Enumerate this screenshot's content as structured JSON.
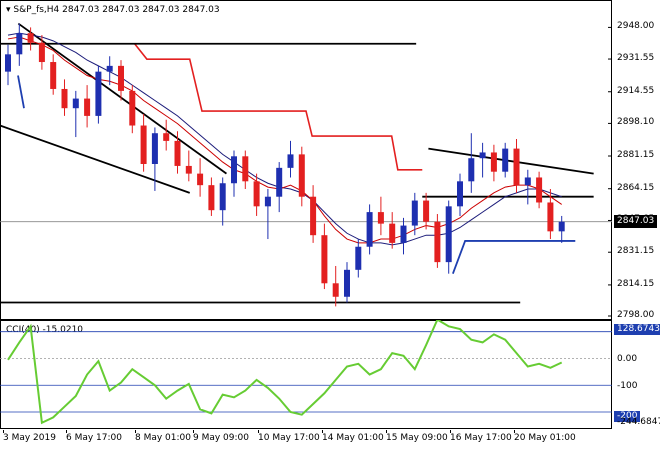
{
  "header": {
    "symbol_label": "S&P_fs,H4",
    "ohlc_values": "2847.03 2847.03 2847.03 2847.03"
  },
  "price_axis": {
    "ticks": [
      "2948.00",
      "2931.55",
      "2914.55",
      "2898.10",
      "2881.15",
      "2864.15",
      "2847.65",
      "2831.15",
      "2814.15",
      "2798.00"
    ],
    "current_price": "2847.03"
  },
  "cci_panel": {
    "title": "CCI(40) -15.0210",
    "ticks": [
      "128.6743",
      "0.00",
      "-100",
      "-200",
      "-244.6847"
    ],
    "level_plus": "100",
    "level_minus_200": "-200"
  },
  "time_axis": {
    "labels": [
      "3 May 2019",
      "6 May 17:00",
      "8 May 01:00",
      "9 May 09:00",
      "10 May 17:00",
      "14 May 01:00",
      "15 May 09:00",
      "16 May 17:00",
      "20 May 01:00"
    ]
  },
  "colors": {
    "bull": "#1e2fb0",
    "bear": "#e32020",
    "ma_fast": "#cc0000",
    "ma_slow": "#1c1c7a",
    "trend": "#000000",
    "cci_line": "#66cc33",
    "level_line": "#1e3fb0"
  },
  "chart_data": {
    "type": "candlestick",
    "series_name": "S&P_fs,H4",
    "ohlc": [
      [
        2925,
        2939,
        2918,
        2934
      ],
      [
        2934,
        2950,
        2928,
        2945
      ],
      [
        2945,
        2948,
        2936,
        2940
      ],
      [
        2940,
        2944,
        2926,
        2930
      ],
      [
        2930,
        2934,
        2913,
        2916
      ],
      [
        2916,
        2921,
        2902,
        2906
      ],
      [
        2906,
        2915,
        2891,
        2911
      ],
      [
        2911,
        2918,
        2896,
        2902
      ],
      [
        2902,
        2928,
        2898,
        2925
      ],
      [
        2925,
        2933,
        2918,
        2928
      ],
      [
        2928,
        2931,
        2910,
        2915
      ],
      [
        2915,
        2918,
        2893,
        2897
      ],
      [
        2897,
        2903,
        2873,
        2877
      ],
      [
        2877,
        2896,
        2863,
        2893
      ],
      [
        2893,
        2900,
        2884,
        2889
      ],
      [
        2889,
        2894,
        2872,
        2876
      ],
      [
        2876,
        2884,
        2868,
        2872
      ],
      [
        2872,
        2880,
        2860,
        2866
      ],
      [
        2866,
        2870,
        2850,
        2853
      ],
      [
        2853,
        2870,
        2845,
        2867
      ],
      [
        2867,
        2884,
        2860,
        2881
      ],
      [
        2881,
        2884,
        2864,
        2868
      ],
      [
        2868,
        2872,
        2850,
        2855
      ],
      [
        2855,
        2864,
        2838,
        2860
      ],
      [
        2860,
        2878,
        2852,
        2875
      ],
      [
        2875,
        2889,
        2870,
        2882
      ],
      [
        2882,
        2886,
        2855,
        2860
      ],
      [
        2860,
        2866,
        2836,
        2840
      ],
      [
        2840,
        2846,
        2812,
        2815
      ],
      [
        2815,
        2824,
        2803,
        2808
      ],
      [
        2808,
        2826,
        2805,
        2822
      ],
      [
        2822,
        2838,
        2818,
        2834
      ],
      [
        2834,
        2856,
        2830,
        2852
      ],
      [
        2852,
        2860,
        2840,
        2846
      ],
      [
        2846,
        2852,
        2833,
        2836
      ],
      [
        2836,
        2849,
        2830,
        2845
      ],
      [
        2845,
        2862,
        2840,
        2858
      ],
      [
        2858,
        2862,
        2843,
        2847
      ],
      [
        2847,
        2851,
        2823,
        2826
      ],
      [
        2826,
        2858,
        2820,
        2855
      ],
      [
        2855,
        2872,
        2850,
        2868
      ],
      [
        2868,
        2893,
        2862,
        2880
      ],
      [
        2880,
        2888,
        2870,
        2883
      ],
      [
        2883,
        2887,
        2868,
        2873
      ],
      [
        2873,
        2888,
        2870,
        2885
      ],
      [
        2885,
        2890,
        2862,
        2866
      ],
      [
        2866,
        2874,
        2856,
        2870
      ],
      [
        2870,
        2873,
        2854,
        2857
      ],
      [
        2857,
        2864,
        2838,
        2842
      ],
      [
        2842,
        2850,
        2836,
        2847
      ]
    ],
    "ma_fast": [
      2942,
      2943,
      2941,
      2939,
      2936,
      2931,
      2927,
      2923,
      2921,
      2920,
      2918,
      2915,
      2910,
      2906,
      2902,
      2898,
      2893,
      2888,
      2883,
      2878,
      2874,
      2872,
      2868,
      2865,
      2864,
      2866,
      2863,
      2858,
      2850,
      2843,
      2838,
      2836,
      2836,
      2838,
      2838,
      2840,
      2843,
      2845,
      2844,
      2846,
      2849,
      2854,
      2858,
      2862,
      2865,
      2866,
      2866,
      2864,
      2860,
      2856
    ],
    "ma_slow": [
      2944,
      2945,
      2944,
      2943,
      2941,
      2938,
      2935,
      2931,
      2928,
      2925,
      2922,
      2918,
      2914,
      2910,
      2906,
      2902,
      2897,
      2892,
      2887,
      2882,
      2878,
      2874,
      2870,
      2867,
      2865,
      2864,
      2862,
      2858,
      2852,
      2846,
      2841,
      2838,
      2836,
      2836,
      2835,
      2836,
      2838,
      2840,
      2840,
      2841,
      2844,
      2848,
      2852,
      2856,
      2860,
      2862,
      2864,
      2864,
      2862,
      2860
    ],
    "envelope": [
      {
        "x": 0.0,
        "y": 2939.5
      },
      {
        "x": 0.22,
        "y": 2939.5
      },
      {
        "x": 0.24,
        "y": 2931.5
      },
      {
        "x": 0.31,
        "y": 2931.5
      },
      {
        "x": 0.33,
        "y": 2904.5
      },
      {
        "x": 0.5,
        "y": 2904.5
      },
      {
        "x": 0.51,
        "y": 2891.5
      },
      {
        "x": 0.64,
        "y": 2891.5
      },
      {
        "x": 0.65,
        "y": 2874.0
      },
      {
        "x": 0.69,
        "y": 2874.0
      }
    ],
    "trendlines": [
      {
        "x1": 0.03,
        "y1": 2950,
        "x2": 0.37,
        "y2": 2872
      },
      {
        "x1": 0.0,
        "y1": 2897,
        "x2": 0.31,
        "y2": 2862
      },
      {
        "x1": 0.0,
        "y1": 2939.5,
        "x2": 0.68,
        "y2": 2939.5
      },
      {
        "x1": 0.0,
        "y1": 2805,
        "x2": 0.85,
        "y2": 2805
      },
      {
        "x1": 0.7,
        "y1": 2885,
        "x2": 0.97,
        "y2": 2872
      },
      {
        "x1": 0.69,
        "y1": 2860,
        "x2": 0.97,
        "y2": 2860
      }
    ],
    "support_line": {
      "x1": 0.74,
      "y1": 2820,
      "x2": 0.76,
      "y2": 2837,
      "x3": 0.94,
      "y3": 2837
    },
    "cci": [
      -5,
      60,
      120,
      -240,
      -220,
      -180,
      -140,
      -60,
      -10,
      -120,
      -90,
      -40,
      -70,
      -100,
      -150,
      -120,
      -95,
      -190,
      -205,
      -135,
      -145,
      -120,
      -80,
      -110,
      -150,
      -200,
      -210,
      -170,
      -130,
      -80,
      -30,
      -20,
      -60,
      -40,
      20,
      10,
      -40,
      50,
      145,
      120,
      110,
      70,
      60,
      90,
      70,
      20,
      -30,
      -20,
      -35,
      -15
    ],
    "ylim_price": [
      2798,
      2956
    ],
    "ylim_cci": [
      -244.6847,
      128.6743
    ]
  }
}
